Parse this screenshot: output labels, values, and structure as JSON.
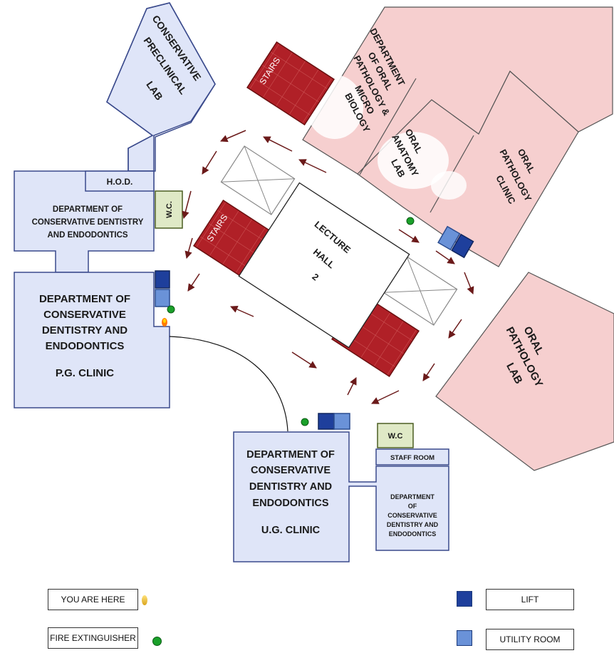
{
  "rooms": {
    "cons_preclinical_lab": [
      "CONSERVATIVE",
      "PRECLINICAL",
      "LAB"
    ],
    "hod": "H.O.D.",
    "wc_left": "W.C.",
    "dept_cons_top": [
      "DEPARTMENT OF",
      "CONSERVATIVE DENTISTRY",
      "AND ENDODONTICS"
    ],
    "pg_clinic": [
      "DEPARTMENT OF",
      "CONSERVATIVE",
      "DENTISTRY AND",
      "ENDODONTICS",
      "P.G. CLINIC"
    ],
    "stairs": "STAIRS",
    "lecture_hall": [
      "LECTURE",
      "HALL",
      "2"
    ],
    "dept_oral_path_micro": [
      "DEPARTMENT",
      "OF ORAL",
      "PATHOLOGY &",
      "MICRO",
      "BIOLOGY"
    ],
    "oral_anatomy_lab": [
      "ORAL",
      "ANATOMY",
      "LAB"
    ],
    "oral_pathology_clinic": [
      "ORAL",
      "PATHOLOGY",
      "CLINIC"
    ],
    "oral_pathology_lab": [
      "ORAL",
      "PATHOLOGY",
      "LAB"
    ],
    "ug_clinic": [
      "DEPARTMENT OF",
      "CONSERVATIVE",
      "DENTISTRY AND",
      "ENDODONTICS",
      "U.G. CLINIC"
    ],
    "wc_bottom": "W.C",
    "staff_room": "STAFF ROOM",
    "dept_cons_small": [
      "DEPARTMENT",
      "OF",
      "CONSERVATIVE",
      "DENTISTRY AND",
      "ENDODONTICS"
    ]
  },
  "legend": {
    "you_are_here": "YOU ARE HERE",
    "fire_extinguisher": "FIRE EXTINGUISHER",
    "lift": "LIFT",
    "utility_room": "UTILITY ROOM"
  },
  "colors": {
    "blue_room_fill": "#dfe5f8",
    "blue_room_border": "#3a4a8c",
    "pink_room_fill": "#f6cfcf",
    "stairs_fill": "#b02027",
    "wc_fill": "#dfe9c6",
    "lift": "#1e3f9c",
    "utility": "#6a92d8",
    "arrow": "#6b1a1a",
    "extinguisher": "#1aa02a"
  }
}
